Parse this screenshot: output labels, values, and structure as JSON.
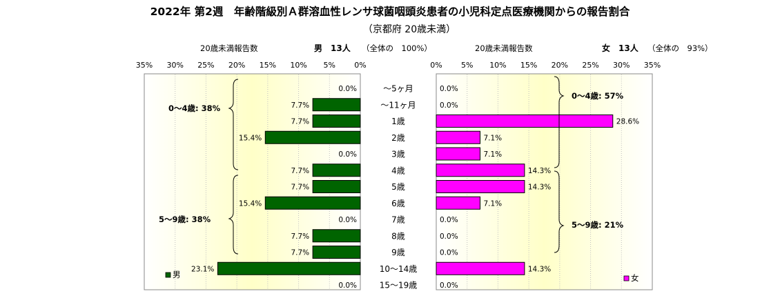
{
  "title": "2022年 第2週　年齢階級別Ａ群溶血性レンサ球菌咽頭炎患者の小児科定点医療機関からの報告割合",
  "subtitle": "（京都府 20歳未満）",
  "chart_data": {
    "type": "bar",
    "orientation": "horizontal-mirrored",
    "categories": [
      "～5ヶ月",
      "～11ヶ月",
      "1歳",
      "2歳",
      "3歳",
      "4歳",
      "5歳",
      "6歳",
      "7歳",
      "8歳",
      "9歳",
      "10～14歳",
      "15～19歳"
    ],
    "x_ticks": [
      "0%",
      "5%",
      "10%",
      "15%",
      "20%",
      "25%",
      "30%",
      "35%"
    ],
    "xlim": [
      0,
      35
    ],
    "grid": true,
    "series": [
      {
        "name": "男",
        "side": "left",
        "color": "#006400",
        "header_axis_label": "20歳未満報告数",
        "header_count": "男　13人",
        "header_ratio": "（全体の　100%）",
        "values": [
          0.0,
          7.7,
          7.7,
          15.4,
          0.0,
          7.7,
          7.7,
          15.4,
          0.0,
          7.7,
          7.7,
          23.1,
          0.0
        ],
        "labels": [
          "0.0%",
          "7.7%",
          "7.7%",
          "15.4%",
          "0.0%",
          "7.7%",
          "7.7%",
          "15.4%",
          "0.0%",
          "7.7%",
          "7.7%",
          "23.1%",
          "0.0%"
        ],
        "group_labels": [
          "0～4歳: 38%",
          "5～9歳: 38%"
        ],
        "legend": "男"
      },
      {
        "name": "女",
        "side": "right",
        "color": "#ff00ff",
        "header_axis_label": "20歳未満報告数",
        "header_count": "女　13人",
        "header_ratio": "（全体の　93%）",
        "values": [
          0.0,
          0.0,
          28.6,
          7.1,
          7.1,
          14.3,
          14.3,
          7.1,
          0.0,
          0.0,
          0.0,
          14.3,
          0.0
        ],
        "labels": [
          "0.0%",
          "0.0%",
          "28.6%",
          "7.1%",
          "7.1%",
          "14.3%",
          "14.3%",
          "7.1%",
          "0.0%",
          "0.0%",
          "0.0%",
          "14.3%",
          "0.0%"
        ],
        "group_labels": [
          "0～4歳: 57%",
          "5～9歳: 21%"
        ],
        "legend": "女"
      }
    ],
    "colors": {
      "male": "#006400",
      "female": "#ff00ff",
      "panel_gradient_center": "#ffffc8",
      "panel_gradient_edge": "#ffffff"
    }
  }
}
